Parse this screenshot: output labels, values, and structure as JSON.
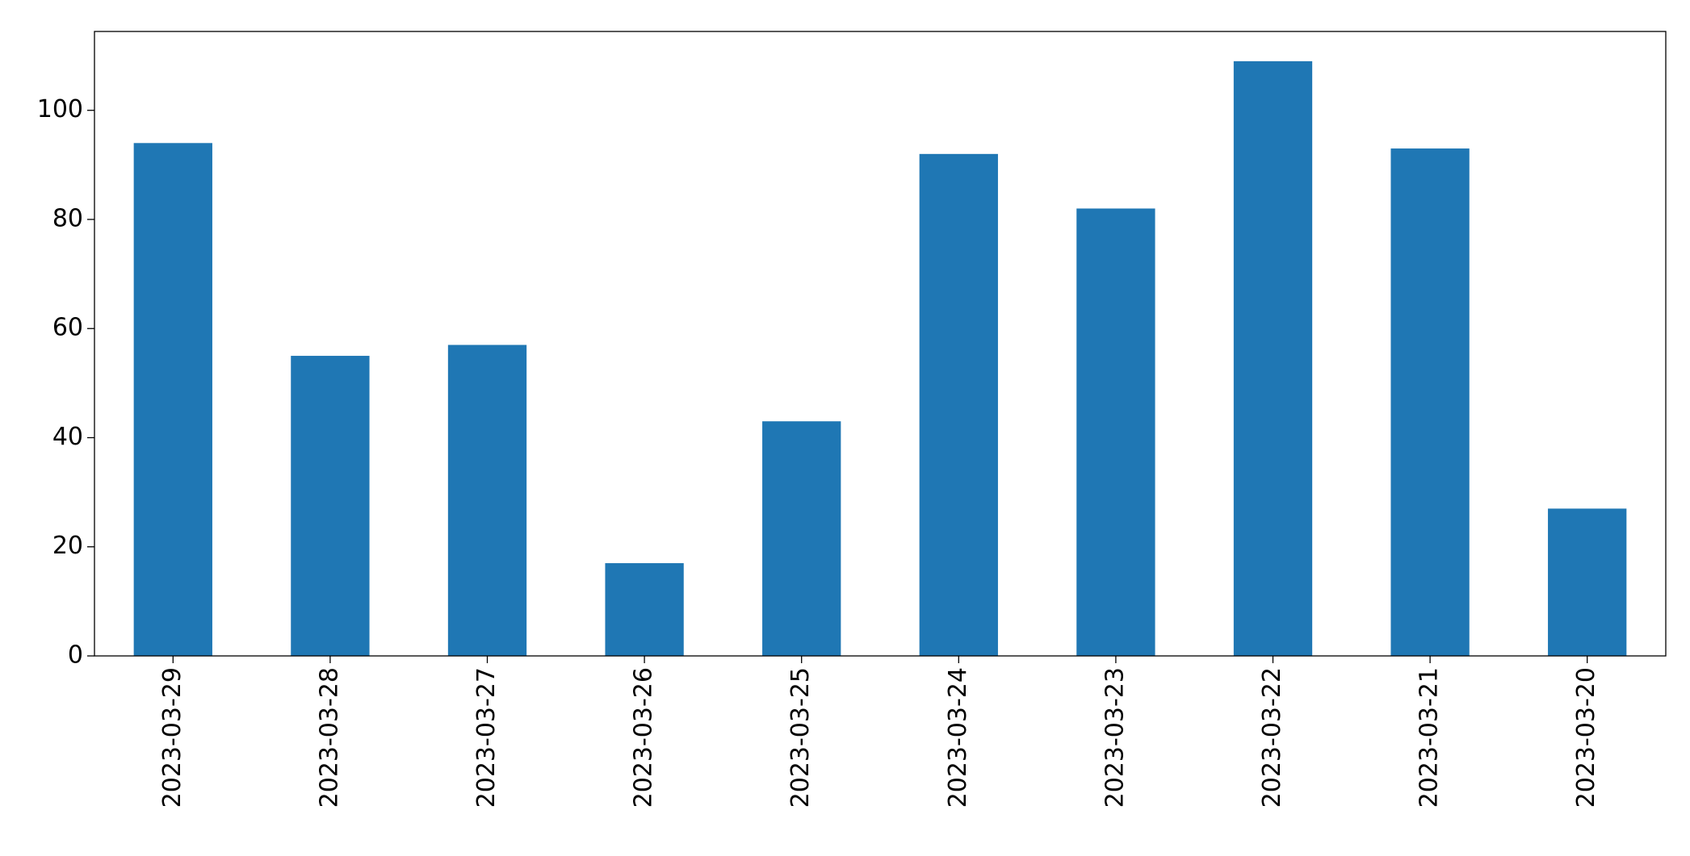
{
  "chart_data": {
    "type": "bar",
    "categories": [
      "2023-03-29",
      "2023-03-28",
      "2023-03-27",
      "2023-03-26",
      "2023-03-25",
      "2023-03-24",
      "2023-03-23",
      "2023-03-22",
      "2023-03-21",
      "2023-03-20"
    ],
    "values": [
      94,
      55,
      57,
      17,
      43,
      92,
      82,
      109,
      93,
      27
    ],
    "color": "#1f77b4",
    "ylim": [
      0,
      114.45
    ],
    "yticks": [
      0,
      20,
      40,
      60,
      80,
      100
    ],
    "grid": false
  }
}
